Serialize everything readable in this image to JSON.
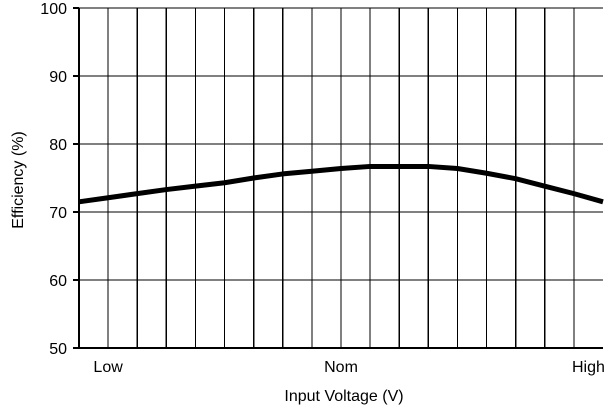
{
  "chart_data": {
    "type": "line",
    "xlabel": "Input Voltage (V)",
    "ylabel": "Efficiency (%)",
    "ylim": [
      50,
      100
    ],
    "xlim": [
      0,
      18
    ],
    "yticks": [
      50,
      60,
      70,
      80,
      90,
      100
    ],
    "xticks": [
      {
        "label": "Low",
        "value": 1
      },
      {
        "label": "Nom",
        "value": 9
      },
      {
        "label": "High",
        "value": 17.5
      }
    ],
    "grid": true,
    "vertical_gridlines": 18,
    "x": [
      0,
      1,
      2,
      3,
      4,
      5,
      6,
      7,
      8,
      9,
      10,
      11,
      12,
      13,
      14,
      15,
      16,
      17,
      18
    ],
    "series": [
      {
        "values": [
          71.5,
          72.1,
          72.7,
          73.3,
          73.8,
          74.3,
          75.0,
          75.6,
          76.0,
          76.4,
          76.7,
          76.7,
          76.7,
          76.4,
          75.7,
          74.9,
          73.8,
          72.7,
          71.5
        ],
        "color": "#000000"
      }
    ]
  }
}
